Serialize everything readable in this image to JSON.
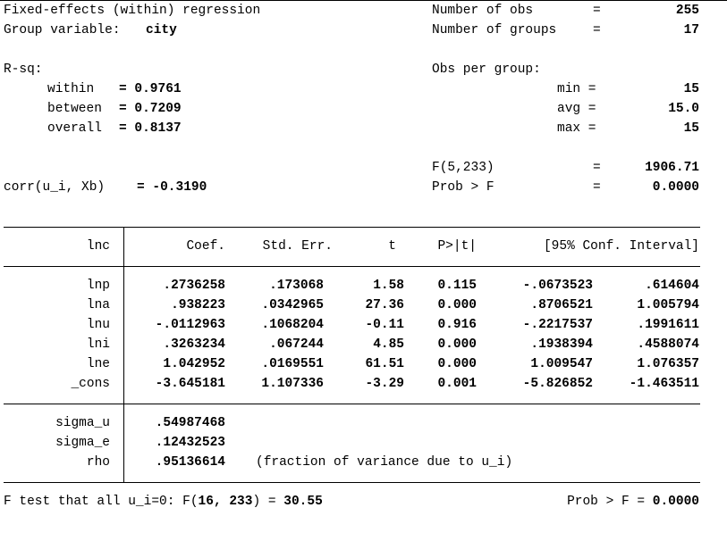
{
  "header": {
    "title": "Fixed-effects (within) regression",
    "group_var_label": "Group variable:",
    "group_var_value": "city",
    "nobs_label": "Number of obs",
    "nobs_eq": "=",
    "nobs_value": "255",
    "ngroups_label": "Number of groups",
    "ngroups_eq": "=",
    "ngroups_value": "17",
    "rsq_label": "R-sq:",
    "within_label": "within",
    "within_value": "= 0.9761",
    "between_label": "between",
    "between_value": "= 0.7209",
    "overall_label": "overall",
    "overall_value": "= 0.8137",
    "obs_per_group_label": "Obs per group:",
    "min_label": "min =",
    "min_value": "15",
    "avg_label": "avg =",
    "avg_value": "15.0",
    "max_label": "max =",
    "max_value": "15",
    "f_label": "F(5,233)",
    "f_eq": "=",
    "f_value": "1906.71",
    "prob_label": "Prob > F",
    "prob_eq": "=",
    "prob_value": "0.0000",
    "corr_label": "corr(u_i, Xb)",
    "corr_value": "= -0.3190"
  },
  "table": {
    "depvar": "lnc",
    "columns": [
      "Coef.",
      "Std. Err.",
      "t",
      "P>|t|",
      "[95% Conf. Interval]"
    ],
    "rows": [
      {
        "name": "lnp",
        "coef": ".2736258",
        "se": ".173068",
        "t": "1.58",
        "p": "0.115",
        "lo": "-.0673523",
        "hi": ".614604"
      },
      {
        "name": "lna",
        "coef": ".938223",
        "se": ".0342965",
        "t": "27.36",
        "p": "0.000",
        "lo": ".8706521",
        "hi": "1.005794"
      },
      {
        "name": "lnu",
        "coef": "-.0112963",
        "se": ".1068204",
        "t": "-0.11",
        "p": "0.916",
        "lo": "-.2217537",
        "hi": ".1991611"
      },
      {
        "name": "lni",
        "coef": ".3263234",
        "se": ".067244",
        "t": "4.85",
        "p": "0.000",
        "lo": ".1938394",
        "hi": ".4588074"
      },
      {
        "name": "lne",
        "coef": "1.042952",
        "se": ".0169551",
        "t": "61.51",
        "p": "0.000",
        "lo": "1.009547",
        "hi": "1.076357"
      },
      {
        "name": "_cons",
        "coef": "-3.645181",
        "se": "1.107336",
        "t": "-3.29",
        "p": "0.001",
        "lo": "-5.826852",
        "hi": "-1.463511"
      }
    ],
    "sigma_u_label": "sigma_u",
    "sigma_u_value": ".54987468",
    "sigma_e_label": "sigma_e",
    "sigma_e_value": ".12432523",
    "rho_label": "rho",
    "rho_value": ".95136614",
    "rho_note": "(fraction of variance due to u_i)"
  },
  "footer": {
    "ftest_prefix": "F test that all u_i=0: F(",
    "ftest_args": "16, 233",
    "ftest_mid": ") = ",
    "ftest_value": "30.55",
    "prob_label": "Prob > F = ",
    "prob_value": "0.0000"
  }
}
